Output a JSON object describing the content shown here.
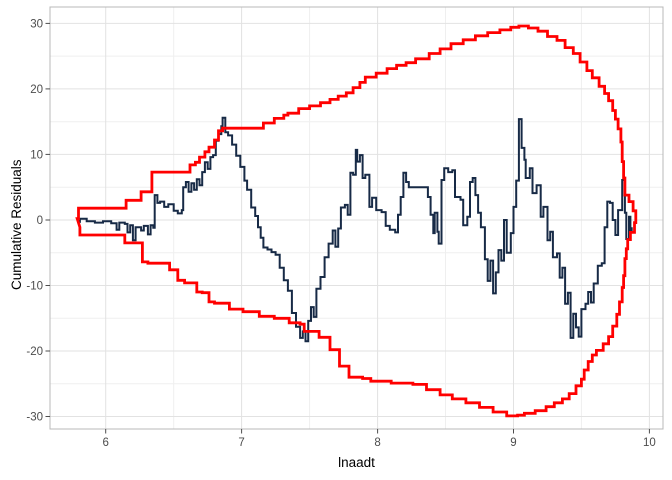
{
  "chart_data": {
    "type": "line",
    "title": "",
    "xlabel": "lnaadt",
    "ylabel": "Cumulative Residuals",
    "x_ticks": [
      6,
      7,
      8,
      9,
      10
    ],
    "x_minor_ticks": [
      6.5,
      7.5,
      8.5,
      9.5
    ],
    "y_ticks": [
      -30,
      -20,
      -10,
      0,
      10,
      20,
      30
    ],
    "y_minor_ticks": [
      -25,
      -15,
      -5,
      5,
      15,
      25
    ],
    "xlim": [
      5.59,
      10.1
    ],
    "ylim": [
      -31.9,
      32.5
    ],
    "grid": true,
    "legend": "none",
    "colors": {
      "residuals_line": "#172A46",
      "envelope_line": "#FF0000",
      "grid_major": "#E2E2E2",
      "grid_minor": "#EFEFEF",
      "panel_border": "#B8B8B8",
      "tick_mark": "#4D4D4D",
      "tick_label": "#4D4D4D",
      "axis_title": "#000000",
      "background": "#FFFFFF"
    },
    "series": [
      {
        "name": "cumulative-residuals",
        "style": "step",
        "closed": false,
        "width": 2,
        "color_key": "residuals_line",
        "points": [
          [
            5.79,
            -0.3
          ],
          [
            5.81,
            0.2
          ],
          [
            5.86,
            -0.2
          ],
          [
            5.92,
            -0.4
          ],
          [
            5.98,
            -0.2
          ],
          [
            6.04,
            -0.5
          ],
          [
            6.08,
            -1.5
          ],
          [
            6.1,
            -0.4
          ],
          [
            6.14,
            -0.6
          ],
          [
            6.16,
            -1.9
          ],
          [
            6.18,
            -0.8
          ],
          [
            6.2,
            -3.1
          ],
          [
            6.22,
            -1.1
          ],
          [
            6.26,
            -1.6
          ],
          [
            6.28,
            -0.9
          ],
          [
            6.31,
            -2.2
          ],
          [
            6.33,
            -0.8
          ],
          [
            6.35,
            -1.2
          ],
          [
            6.36,
            3.8
          ],
          [
            6.38,
            2.6
          ],
          [
            6.4,
            2.8
          ],
          [
            6.43,
            2.0
          ],
          [
            6.46,
            2.4
          ],
          [
            6.5,
            1.4
          ],
          [
            6.53,
            1.0
          ],
          [
            6.56,
            1.5
          ],
          [
            6.57,
            5.0
          ],
          [
            6.59,
            5.8
          ],
          [
            6.61,
            4.3
          ],
          [
            6.63,
            5.6
          ],
          [
            6.65,
            4.6
          ],
          [
            6.67,
            6.2
          ],
          [
            6.69,
            5.3
          ],
          [
            6.71,
            7.3
          ],
          [
            6.73,
            8.8
          ],
          [
            6.75,
            7.8
          ],
          [
            6.77,
            9.6
          ],
          [
            6.79,
            9.9
          ],
          [
            6.81,
            12.1
          ],
          [
            6.83,
            13.1
          ],
          [
            6.85,
            14.3
          ],
          [
            6.86,
            15.6
          ],
          [
            6.88,
            13.4
          ],
          [
            6.9,
            12.9
          ],
          [
            6.93,
            11.5
          ],
          [
            6.96,
            9.8
          ],
          [
            6.99,
            8.1
          ],
          [
            7.02,
            6.0
          ],
          [
            7.04,
            4.6
          ],
          [
            7.07,
            1.9
          ],
          [
            7.1,
            0.6
          ],
          [
            7.12,
            -1.1
          ],
          [
            7.14,
            -2.7
          ],
          [
            7.16,
            -4.2
          ],
          [
            7.19,
            -4.5
          ],
          [
            7.22,
            -4.9
          ],
          [
            7.25,
            -5.3
          ],
          [
            7.28,
            -7.3
          ],
          [
            7.31,
            -9.2
          ],
          [
            7.34,
            -10.8
          ],
          [
            7.37,
            -14.2
          ],
          [
            7.4,
            -16.3
          ],
          [
            7.43,
            -18.0
          ],
          [
            7.45,
            -17.0
          ],
          [
            7.47,
            -18.5
          ],
          [
            7.49,
            -15.4
          ],
          [
            7.51,
            -13.3
          ],
          [
            7.53,
            -14.8
          ],
          [
            7.55,
            -10.5
          ],
          [
            7.58,
            -8.7
          ],
          [
            7.61,
            -5.7
          ],
          [
            7.64,
            -3.6
          ],
          [
            7.67,
            -1.6
          ],
          [
            7.69,
            -4.1
          ],
          [
            7.71,
            -1.3
          ],
          [
            7.73,
            1.9
          ],
          [
            7.76,
            2.3
          ],
          [
            7.78,
            0.8
          ],
          [
            7.8,
            7.2
          ],
          [
            7.82,
            6.9
          ],
          [
            7.84,
            10.7
          ],
          [
            7.85,
            8.9
          ],
          [
            7.87,
            9.9
          ],
          [
            7.89,
            6.4
          ],
          [
            7.91,
            6.9
          ],
          [
            7.94,
            2.0
          ],
          [
            7.96,
            3.4
          ],
          [
            7.99,
            1.5
          ],
          [
            8.03,
            1.2
          ],
          [
            8.06,
            -0.9
          ],
          [
            8.09,
            -1.5
          ],
          [
            8.13,
            -1.9
          ],
          [
            8.15,
            0.8
          ],
          [
            8.17,
            3.5
          ],
          [
            8.19,
            7.2
          ],
          [
            8.21,
            5.8
          ],
          [
            8.23,
            5.0
          ],
          [
            8.35,
            5.0
          ],
          [
            8.37,
            3.5
          ],
          [
            8.39,
            0.8
          ],
          [
            8.41,
            -2.0
          ],
          [
            8.42,
            1.1
          ],
          [
            8.44,
            -1.8
          ],
          [
            8.45,
            -3.6
          ],
          [
            8.47,
            6.1
          ],
          [
            8.49,
            7.9
          ],
          [
            8.52,
            7.3
          ],
          [
            8.55,
            7.6
          ],
          [
            8.57,
            3.5
          ],
          [
            8.61,
            3.1
          ],
          [
            8.63,
            -0.8
          ],
          [
            8.66,
            0.5
          ],
          [
            8.68,
            5.8
          ],
          [
            8.7,
            6.4
          ],
          [
            8.72,
            3.8
          ],
          [
            8.74,
            1.1
          ],
          [
            8.76,
            -1.1
          ],
          [
            8.79,
            -6.0
          ],
          [
            8.81,
            -9.3
          ],
          [
            8.83,
            -6.2
          ],
          [
            8.85,
            -11.2
          ],
          [
            8.87,
            -8.0
          ],
          [
            8.89,
            -4.6
          ],
          [
            8.91,
            -6.2
          ],
          [
            8.93,
            0.0
          ],
          [
            8.95,
            -5.0
          ],
          [
            8.98,
            -2.0
          ],
          [
            9.0,
            2.0
          ],
          [
            9.02,
            6.0
          ],
          [
            9.04,
            15.4
          ],
          [
            9.06,
            11.0
          ],
          [
            9.08,
            9.2
          ],
          [
            9.09,
            6.4
          ],
          [
            9.12,
            7.9
          ],
          [
            9.14,
            4.1
          ],
          [
            9.17,
            5.3
          ],
          [
            9.2,
            0.5
          ],
          [
            9.22,
            2.0
          ],
          [
            9.25,
            -3.1
          ],
          [
            9.27,
            -1.8
          ],
          [
            9.29,
            -5.7
          ],
          [
            9.32,
            -5.1
          ],
          [
            9.34,
            -8.8
          ],
          [
            9.36,
            -7.3
          ],
          [
            9.38,
            -12.8
          ],
          [
            9.4,
            -11.1
          ],
          [
            9.42,
            -18.0
          ],
          [
            9.44,
            -14.3
          ],
          [
            9.46,
            -16.4
          ],
          [
            9.48,
            -17.8
          ],
          [
            9.5,
            -13.6
          ],
          [
            9.53,
            -12.8
          ],
          [
            9.55,
            -11.0
          ],
          [
            9.57,
            -12.6
          ],
          [
            9.59,
            -9.7
          ],
          [
            9.62,
            -7.0
          ],
          [
            9.65,
            -6.6
          ],
          [
            9.67,
            -1.1
          ],
          [
            9.69,
            2.8
          ],
          [
            9.71,
            2.6
          ],
          [
            9.73,
            0.0
          ],
          [
            9.75,
            -2.3
          ],
          [
            9.77,
            1.5
          ],
          [
            9.8,
            6.1
          ],
          [
            9.82,
            1.1
          ],
          [
            9.83,
            -2.9
          ],
          [
            9.85,
            0.5
          ],
          [
            9.86,
            -1.9
          ],
          [
            9.87,
            -1.1
          ]
        ]
      },
      {
        "name": "confidence-envelope",
        "style": "step",
        "closed": true,
        "width": 2.8,
        "color_key": "envelope_line",
        "points": [
          [
            5.79,
            0.2
          ],
          [
            5.8,
            1.8
          ],
          [
            6.14,
            1.8
          ],
          [
            6.15,
            3.0
          ],
          [
            6.25,
            3.0
          ],
          [
            6.26,
            4.3
          ],
          [
            6.33,
            4.3
          ],
          [
            6.34,
            7.3
          ],
          [
            6.6,
            7.3
          ],
          [
            6.62,
            8.4
          ],
          [
            6.66,
            8.8
          ],
          [
            6.69,
            9.6
          ],
          [
            6.73,
            10.4
          ],
          [
            6.76,
            11.1
          ],
          [
            6.8,
            12.2
          ],
          [
            6.83,
            13.6
          ],
          [
            6.86,
            14.0
          ],
          [
            7.12,
            14.0
          ],
          [
            7.16,
            14.8
          ],
          [
            7.24,
            15.5
          ],
          [
            7.31,
            16.0
          ],
          [
            7.34,
            16.3
          ],
          [
            7.42,
            17.0
          ],
          [
            7.5,
            17.4
          ],
          [
            7.58,
            17.9
          ],
          [
            7.65,
            18.4
          ],
          [
            7.71,
            18.9
          ],
          [
            7.77,
            19.4
          ],
          [
            7.82,
            20.2
          ],
          [
            7.87,
            21.0
          ],
          [
            7.91,
            21.8
          ],
          [
            7.99,
            22.4
          ],
          [
            8.07,
            23.1
          ],
          [
            8.14,
            23.6
          ],
          [
            8.21,
            24.0
          ],
          [
            8.28,
            24.6
          ],
          [
            8.38,
            25.4
          ],
          [
            8.46,
            26.1
          ],
          [
            8.54,
            26.9
          ],
          [
            8.63,
            27.5
          ],
          [
            8.72,
            28.1
          ],
          [
            8.81,
            28.6
          ],
          [
            8.9,
            29.0
          ],
          [
            8.98,
            29.4
          ],
          [
            9.04,
            29.6
          ],
          [
            9.11,
            29.3
          ],
          [
            9.18,
            28.8
          ],
          [
            9.25,
            28.0
          ],
          [
            9.32,
            27.4
          ],
          [
            9.38,
            26.3
          ],
          [
            9.44,
            25.4
          ],
          [
            9.49,
            24.1
          ],
          [
            9.54,
            22.8
          ],
          [
            9.58,
            21.7
          ],
          [
            9.63,
            20.4
          ],
          [
            9.67,
            19.3
          ],
          [
            9.7,
            18.2
          ],
          [
            9.73,
            16.7
          ],
          [
            9.75,
            15.4
          ],
          [
            9.77,
            13.9
          ],
          [
            9.79,
            11.9
          ],
          [
            9.8,
            8.9
          ],
          [
            9.81,
            6.4
          ],
          [
            9.82,
            3.8
          ],
          [
            9.85,
            2.8
          ],
          [
            9.88,
            1.4
          ],
          [
            9.9,
            -0.4
          ],
          [
            9.89,
            -1.9
          ],
          [
            9.86,
            -3.0
          ],
          [
            9.84,
            -4.4
          ],
          [
            9.83,
            -5.9
          ],
          [
            9.82,
            -8.5
          ],
          [
            9.81,
            -10.3
          ],
          [
            9.8,
            -12.5
          ],
          [
            9.78,
            -14.4
          ],
          [
            9.76,
            -16.2
          ],
          [
            9.73,
            -17.8
          ],
          [
            9.7,
            -18.9
          ],
          [
            9.66,
            -19.9
          ],
          [
            9.61,
            -20.6
          ],
          [
            9.58,
            -21.6
          ],
          [
            9.55,
            -22.9
          ],
          [
            9.52,
            -24.3
          ],
          [
            9.5,
            -25.3
          ],
          [
            9.46,
            -26.5
          ],
          [
            9.41,
            -27.3
          ],
          [
            9.36,
            -27.9
          ],
          [
            9.3,
            -28.5
          ],
          [
            9.24,
            -29.1
          ],
          [
            9.16,
            -29.5
          ],
          [
            9.08,
            -29.8
          ],
          [
            9.03,
            -29.9
          ],
          [
            8.95,
            -29.3
          ],
          [
            8.85,
            -28.6
          ],
          [
            8.75,
            -27.9
          ],
          [
            8.65,
            -27.3
          ],
          [
            8.55,
            -26.7
          ],
          [
            8.46,
            -25.9
          ],
          [
            8.36,
            -25.1
          ],
          [
            8.26,
            -24.9
          ],
          [
            8.1,
            -24.6
          ],
          [
            7.95,
            -24.2
          ],
          [
            7.89,
            -24.0
          ],
          [
            7.79,
            -22.3
          ],
          [
            7.72,
            -19.8
          ],
          [
            7.65,
            -17.9
          ],
          [
            7.57,
            -17.0
          ],
          [
            7.46,
            -15.9
          ],
          [
            7.43,
            -15.7
          ],
          [
            7.35,
            -15.0
          ],
          [
            7.24,
            -14.7
          ],
          [
            7.13,
            -14.0
          ],
          [
            7.01,
            -13.6
          ],
          [
            6.91,
            -12.7
          ],
          [
            6.8,
            -12.5
          ],
          [
            6.76,
            -11.1
          ],
          [
            6.71,
            -11.0
          ],
          [
            6.67,
            -9.6
          ],
          [
            6.58,
            -9.2
          ],
          [
            6.53,
            -7.6
          ],
          [
            6.47,
            -6.6
          ],
          [
            6.31,
            -6.4
          ],
          [
            6.27,
            -3.5
          ],
          [
            6.15,
            -3.5
          ],
          [
            6.14,
            -2.3
          ],
          [
            5.85,
            -2.3
          ],
          [
            5.81,
            -1.1
          ]
        ]
      }
    ]
  }
}
